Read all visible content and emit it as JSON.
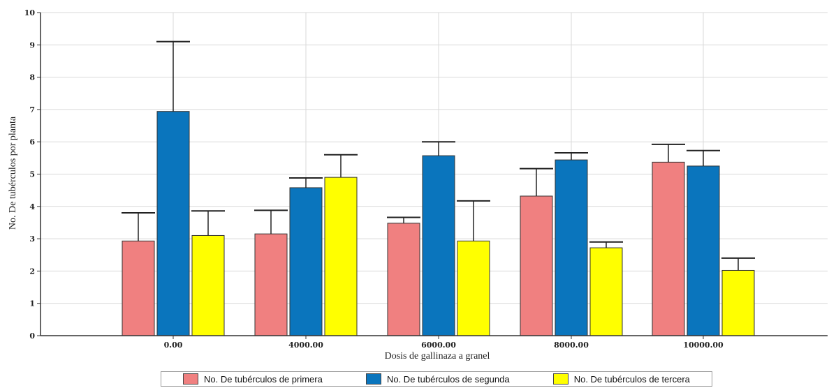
{
  "chart_data": {
    "type": "bar",
    "xlabel": "Dosis de gallinaza a granel",
    "ylabel": "No. De tubérculos por planta",
    "ylim": [
      0,
      10
    ],
    "yticks": [
      "0",
      "1",
      "2",
      "3",
      "4",
      "5",
      "6",
      "7",
      "8",
      "9",
      "10"
    ],
    "categories": [
      "0.00",
      "4000.00",
      "6000.00",
      "8000.00",
      "10000.00"
    ],
    "grid": true,
    "legend_position": "bottom",
    "error_bars": true,
    "series": [
      {
        "name": "No. De tubérculos de primera",
        "color": "#f08080",
        "values": [
          2.93,
          3.15,
          3.48,
          4.32,
          5.37
        ],
        "error_upper": [
          3.8,
          3.88,
          3.66,
          5.17,
          5.92
        ]
      },
      {
        "name": "No. De tubérculos de segunda",
        "color": "#0a75bd",
        "values": [
          6.94,
          4.58,
          5.57,
          5.44,
          5.25
        ],
        "error_upper": [
          9.1,
          4.88,
          6.0,
          5.66,
          5.73
        ]
      },
      {
        "name": "No. De tubérculos de tercera",
        "color": "#ffff00",
        "values": [
          3.1,
          4.9,
          2.93,
          2.72,
          2.02
        ],
        "error_upper": [
          3.86,
          5.6,
          4.17,
          2.9,
          2.4
        ]
      }
    ]
  }
}
